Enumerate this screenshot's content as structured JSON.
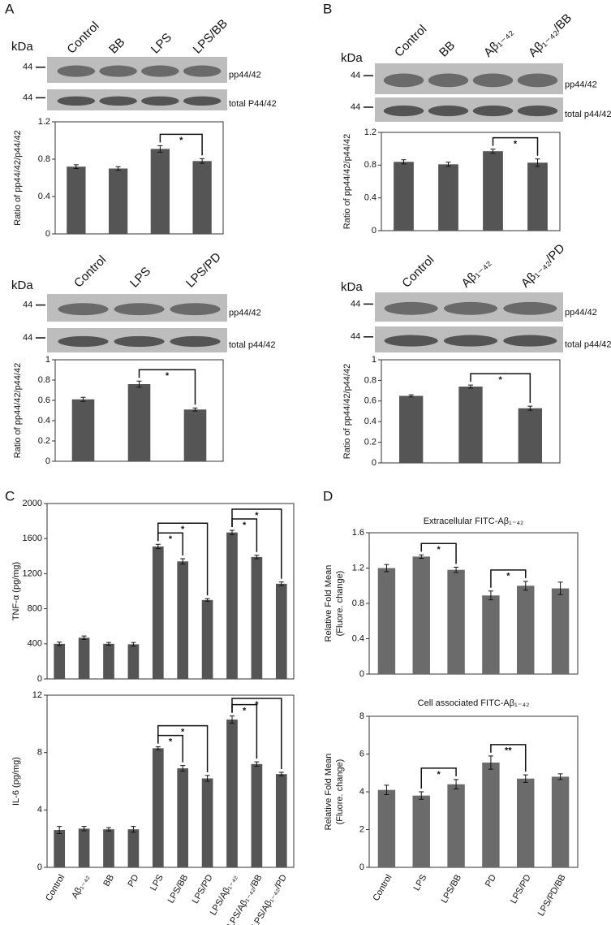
{
  "panels": [
    "A",
    "B",
    "C",
    "D"
  ],
  "chart_data": [
    {
      "type": "bar",
      "color": "#555555",
      "ylabel": [
        "Ratio of pp44/42/p44/42"
      ],
      "categories": [
        "Control",
        "BB",
        "LPS",
        "LPS/BB"
      ],
      "values": [
        0.72,
        0.7,
        0.91,
        0.78
      ],
      "errors": [
        0.02,
        0.02,
        0.035,
        0.025
      ],
      "ylim": [
        0,
        1.2
      ],
      "yticks": [
        0,
        0.4,
        0.8,
        1.2
      ],
      "blot": {
        "unit": "kDa",
        "markers": [
          44,
          44
        ],
        "bands": [
          "pp44/42",
          "total P44/42"
        ]
      },
      "annotations": [
        {
          "between": [
            2,
            3
          ],
          "label": "*"
        }
      ]
    },
    {
      "type": "bar",
      "color": "#555555",
      "ylabel": [
        "Ratio of pp44/42/p44/42"
      ],
      "categories": [
        "Control",
        "LPS",
        "LPS/PD"
      ],
      "values": [
        0.61,
        0.76,
        0.51
      ],
      "errors": [
        0.02,
        0.03,
        0.015
      ],
      "ylim": [
        0,
        1
      ],
      "yticks": [
        0,
        0.2,
        0.4,
        0.6,
        0.8,
        1
      ],
      "blot": {
        "unit": "kDa",
        "markers": [
          44,
          44
        ],
        "bands": [
          "pp44/42",
          "total p44/42"
        ]
      },
      "annotations": [
        {
          "between": [
            1,
            2
          ],
          "label": "*"
        }
      ]
    },
    {
      "type": "bar",
      "color": "#555555",
      "ylabel": [
        "Ratio of pp44/42/p44/42"
      ],
      "categories": [
        "Control",
        "BB",
        "Aβ₁₋₄₂",
        "Aβ₁₋₄₂/BB"
      ],
      "values": [
        0.84,
        0.81,
        0.97,
        0.83
      ],
      "errors": [
        0.025,
        0.025,
        0.025,
        0.045
      ],
      "ylim": [
        0,
        1.2
      ],
      "yticks": [
        0,
        0.4,
        0.8,
        1.2
      ],
      "blot": {
        "unit": "kDa",
        "markers": [
          44,
          44
        ],
        "bands": [
          "pp44/42",
          "total p44/42"
        ]
      },
      "annotations": [
        {
          "between": [
            2,
            3
          ],
          "label": "*"
        }
      ]
    },
    {
      "type": "bar",
      "color": "#555555",
      "ylabel": [
        "Ratio of pp44/42/p44/42"
      ],
      "categories": [
        "Control",
        "Aβ₁₋₄₂",
        "Aβ₁₋₄₂/PD"
      ],
      "values": [
        0.65,
        0.74,
        0.53
      ],
      "errors": [
        0.01,
        0.015,
        0.02
      ],
      "ylim": [
        0,
        1
      ],
      "yticks": [
        0,
        0.2,
        0.4,
        0.6,
        0.8,
        1
      ],
      "blot": {
        "unit": "kDa",
        "markers": [
          44,
          44
        ],
        "bands": [
          "pp44/42",
          "total p44/42"
        ]
      },
      "annotations": [
        {
          "between": [
            1,
            2
          ],
          "label": "*"
        }
      ]
    },
    {
      "type": "bar",
      "color": "#555555",
      "ylabel": [
        "TNF-α (pg/mg)"
      ],
      "values": [
        400,
        470,
        400,
        395,
        1510,
        1340,
        900,
        1670,
        1390,
        1085
      ],
      "errors": [
        20,
        20,
        15,
        20,
        25,
        30,
        15,
        25,
        20,
        20
      ],
      "ylim": [
        0,
        2000
      ],
      "yticks": [
        0,
        400,
        800,
        1200,
        1600,
        2000
      ],
      "annotations": [
        {
          "between": [
            4,
            5
          ],
          "label": "*"
        },
        {
          "between": [
            4,
            6
          ],
          "label": "*"
        },
        {
          "between": [
            7,
            8
          ],
          "label": "*"
        },
        {
          "between": [
            7,
            9
          ],
          "label": "*"
        }
      ]
    },
    {
      "type": "bar",
      "color": "#555555",
      "ylabel": [
        "IL-6 (pg/mg)"
      ],
      "categories": [
        "Control",
        "Aβ₁₋₄₂",
        "BB",
        "PD",
        "LPS",
        "LPS/BB",
        "LPS/PD",
        "LPS/Aβ₁₋₄₂",
        "LPS/Aβ₁₋₄₂/BB",
        "LPS/Aβ₁₋₄₂/PD"
      ],
      "values": [
        2.6,
        2.7,
        2.65,
        2.65,
        8.3,
        6.9,
        6.2,
        10.3,
        7.2,
        6.5
      ],
      "errors": [
        0.25,
        0.15,
        0.12,
        0.2,
        0.1,
        0.2,
        0.2,
        0.25,
        0.15,
        0.12
      ],
      "ylim": [
        0,
        12
      ],
      "yticks": [
        0,
        4,
        8,
        12
      ],
      "annotations": [
        {
          "between": [
            4,
            5
          ],
          "label": "*"
        },
        {
          "between": [
            4,
            6
          ],
          "label": "*"
        },
        {
          "between": [
            7,
            8
          ],
          "label": "*"
        },
        {
          "between": [
            7,
            9
          ],
          "label": "*"
        }
      ]
    },
    {
      "type": "bar",
      "color": "#6b6b6b",
      "title": "Extracellular FITC-Aβ₁₋₄₂",
      "ylabel": [
        "Relative Fold Mean",
        "(Fluore. change)"
      ],
      "values": [
        1.2,
        1.33,
        1.18,
        0.89,
        1.0,
        0.97
      ],
      "errors": [
        0.04,
        0.02,
        0.03,
        0.05,
        0.05,
        0.07
      ],
      "ylim": [
        0,
        1.6
      ],
      "yticks": [
        0,
        0.4,
        0.8,
        1.2,
        1.6
      ],
      "annotations": [
        {
          "between": [
            1,
            2
          ],
          "label": "*"
        },
        {
          "between": [
            3,
            4
          ],
          "label": "*"
        }
      ]
    },
    {
      "type": "bar",
      "color": "#6b6b6b",
      "title": "Cell associated FITC-Aβ₁₋₄₂",
      "ylabel": [
        "Relative Fold Mean",
        "(Fluore. change)"
      ],
      "categories": [
        "Control",
        "LPS",
        "LPS/BB",
        "PD",
        "LPS/PD",
        "LPS/PD/BB"
      ],
      "values": [
        4.1,
        3.8,
        4.4,
        5.55,
        4.7,
        4.8
      ],
      "errors": [
        0.25,
        0.2,
        0.25,
        0.35,
        0.2,
        0.15
      ],
      "ylim": [
        0,
        8
      ],
      "yticks": [
        0,
        2,
        4,
        6,
        8
      ],
      "annotations": [
        {
          "between": [
            1,
            2
          ],
          "label": "*"
        },
        {
          "between": [
            3,
            4
          ],
          "label": "**"
        }
      ]
    }
  ]
}
